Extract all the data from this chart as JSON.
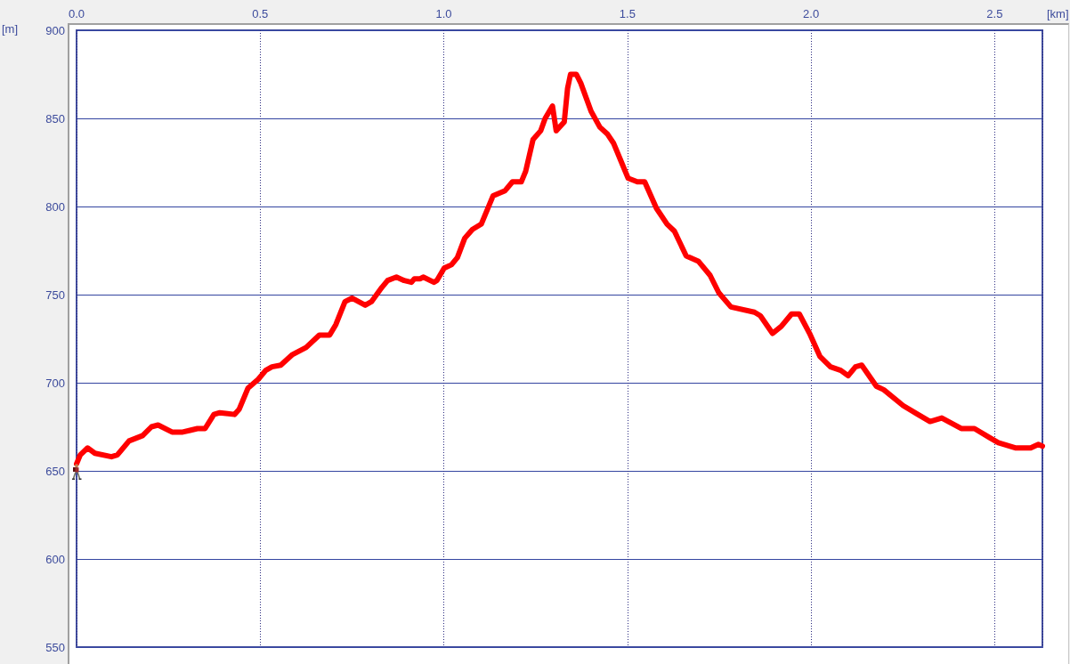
{
  "chart_data": {
    "type": "line",
    "xlabel": "[km]",
    "ylabel": "[m]",
    "x": [
      0,
      0.01,
      0.03,
      0.05,
      0.095,
      0.111,
      0.143,
      0.18,
      0.204,
      0.222,
      0.26,
      0.289,
      0.309,
      0.329,
      0.35,
      0.374,
      0.39,
      0.43,
      0.443,
      0.467,
      0.495,
      0.515,
      0.532,
      0.556,
      0.588,
      0.625,
      0.661,
      0.689,
      0.706,
      0.731,
      0.75,
      0.786,
      0.803,
      0.831,
      0.847,
      0.871,
      0.892,
      0.912,
      0.92,
      0.936,
      0.944,
      0.973,
      0.981,
      1.001,
      1.021,
      1.037,
      1.057,
      1.078,
      1.102,
      1.134,
      1.167,
      1.187,
      1.211,
      1.223,
      1.243,
      1.264,
      1.276,
      1.296,
      1.306,
      1.328,
      1.337,
      1.345,
      1.361,
      1.373,
      1.401,
      1.425,
      1.446,
      1.462,
      1.482,
      1.502,
      1.527,
      1.547,
      1.579,
      1.608,
      1.628,
      1.66,
      1.693,
      1.725,
      1.749,
      1.782,
      1.846,
      1.862,
      1.895,
      1.919,
      1.947,
      1.968,
      1.996,
      2.024,
      2.053,
      2.081,
      2.101,
      2.121,
      2.138,
      2.178,
      2.198,
      2.251,
      2.291,
      2.324,
      2.356,
      2.409,
      2.445,
      2.485,
      2.51,
      2.558,
      2.598,
      2.619,
      2.63
    ],
    "series": [
      {
        "color": "#ff0000",
        "values": [
          654,
          659,
          663,
          660,
          658,
          659,
          667,
          670,
          675,
          676,
          672,
          672,
          673,
          674,
          674,
          682,
          683,
          682,
          685,
          697,
          702,
          707,
          709,
          710,
          716,
          720,
          727,
          727,
          733,
          746,
          748,
          744,
          746,
          754,
          758,
          760,
          758,
          757,
          759,
          759,
          760,
          757,
          758,
          765,
          767,
          771,
          782,
          787,
          790,
          806,
          809,
          814,
          814,
          820,
          838,
          843,
          850,
          857,
          843,
          848,
          867,
          875,
          875,
          870,
          854,
          845,
          841,
          836,
          826,
          816,
          814,
          814,
          799,
          790,
          786,
          772,
          769,
          761,
          751,
          743,
          740,
          738,
          728,
          732,
          739,
          739,
          728,
          715,
          709,
          707,
          704,
          709,
          710,
          698,
          696,
          687,
          682,
          678,
          680,
          674,
          674,
          669,
          666,
          663,
          663,
          665,
          664
        ]
      }
    ],
    "xlim": [
      0,
      2.63
    ],
    "xticks": [
      {
        "value": 0,
        "label": "0.0"
      },
      0.5,
      {
        "value": 1,
        "label": "1.0"
      },
      1.5,
      {
        "value": 2,
        "label": "2.0"
      },
      2.5
    ],
    "ylim": [
      550,
      900
    ],
    "yticks": [
      550,
      600,
      650,
      700,
      750,
      800,
      850,
      900
    ],
    "grid": true,
    "marker": "none",
    "line_style": "solid"
  }
}
